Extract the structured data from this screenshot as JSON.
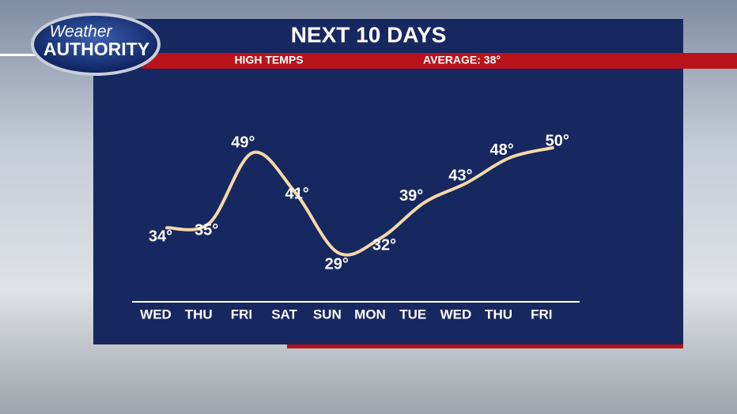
{
  "logo": {
    "line1": "Weather",
    "line2": "AUTHORITY"
  },
  "chart_data": {
    "type": "line",
    "title": "NEXT 10 DAYS",
    "subtitle": "HIGH TEMPS",
    "annotation": "AVERAGE: 38°",
    "categories": [
      "WED",
      "THU",
      "FRI",
      "SAT",
      "SUN",
      "MON",
      "TUE",
      "WED",
      "THU",
      "FRI"
    ],
    "values": [
      34,
      35,
      49,
      41,
      29,
      32,
      39,
      43,
      48,
      50
    ],
    "value_labels": [
      "34°",
      "35°",
      "49°",
      "41°",
      "29°",
      "32°",
      "39°",
      "43°",
      "48°",
      "50°"
    ],
    "color": "#f5d9a8"
  }
}
